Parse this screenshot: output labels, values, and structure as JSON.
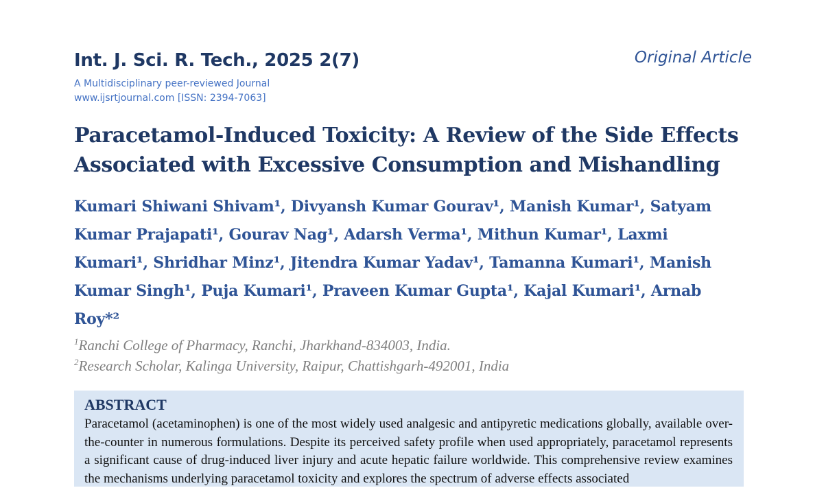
{
  "header": {
    "journal_title": "Int. J. Sci. R. Tech., 2025 2(7)",
    "article_type": "Original Article",
    "journal_description": "A Multidisciplinary peer-reviewed Journal",
    "journal_website": "www.ijsrtjournal.com [ISSN: 2394-7063]"
  },
  "paper": {
    "title": "Paracetamol-Induced Toxicity: A Review of the Side Effects Associated with Excessive Consumption and Mishandling",
    "authors": "Kumari Shiwani Shivam¹, Divyansh Kumar Gourav¹, Manish Kumar¹, Satyam Kumar Prajapati¹, Gourav Nag¹, Adarsh Verma¹, Mithun Kumar¹, Laxmi Kumari¹, Shridhar Minz¹, Jitendra Kumar Yadav¹, Tamanna Kumari¹, Manish Kumar Singh¹, Puja Kumari¹, Praveen Kumar Gupta¹, Kajal Kumari¹, Arnab Roy*²",
    "affiliations": [
      {
        "marker": "1",
        "text": "Ranchi College of Pharmacy, Ranchi, Jharkhand-834003, India."
      },
      {
        "marker": "2",
        "text": "Research Scholar, Kalinga University, Raipur, Chattishgarh-492001, India"
      }
    ]
  },
  "abstract": {
    "heading": "ABSTRACT",
    "text": "Paracetamol (acetaminophen) is one of the most widely used analgesic and antipyretic medications globally, available over-the-counter in numerous formulations. Despite its perceived safety profile when used appropriately, paracetamol represents a significant cause of drug-induced liver injury and acute hepatic failure worldwide. This comprehensive review examines the mechanisms underlying paracetamol toxicity and explores the spectrum of adverse effects associated"
  },
  "colors": {
    "heading_navy": "#1f3864",
    "author_blue": "#2f5496",
    "link_blue": "#4472c4",
    "abstract_bg": "#dae6f4"
  }
}
